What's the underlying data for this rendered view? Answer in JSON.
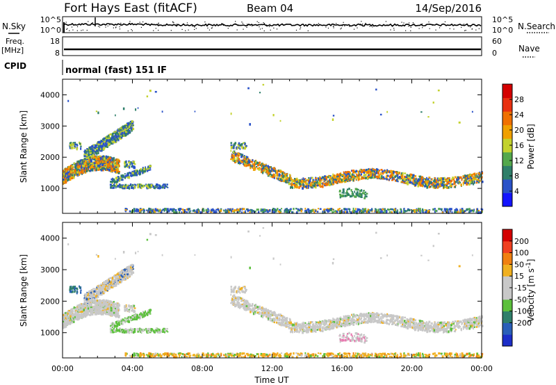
{
  "header": {
    "station": "Fort Hays East (fitACF)",
    "beam": "Beam 04",
    "date": "14/Sep/2016",
    "cpid": "CPID",
    "mode": "normal (fast) 151 IF"
  },
  "status_panels": {
    "noise": {
      "left_label": "N.Sky",
      "right_label": "N.Search",
      "left_ticks": [
        "10^5",
        "10^0"
      ],
      "right_ticks": [
        "10^5",
        "10^0"
      ]
    },
    "freq": {
      "left_label_line1": "Freq.",
      "left_label_line2": "[MHz]",
      "right_label": "Nave",
      "left_ticks": [
        "18",
        "8"
      ],
      "right_ticks": [
        "60",
        "0"
      ]
    }
  },
  "colors": {
    "power_scale": [
      "#1414ff",
      "#2a52c8",
      "#2f7f6a",
      "#54a84c",
      "#c3d22d",
      "#f0a000",
      "#f07000",
      "#e83010",
      "#d40000"
    ],
    "velocity_scale": [
      "#1c2ec8",
      "#2a5fb8",
      "#2f7f6a",
      "#5cc03c",
      "#c8c8c8",
      "#c8c8c8",
      "#f0b020",
      "#f08010",
      "#f04020",
      "#d40000"
    ]
  },
  "chart_data": [
    {
      "type": "heatmap",
      "name": "power",
      "ylabel": "Slant Range [km]",
      "yticks": [
        "1000",
        "2000",
        "3000",
        "4000"
      ],
      "ylim": [
        200,
        4500
      ],
      "xlim": [
        0,
        24
      ],
      "colorbar_label": "Power [dB]",
      "colorbar_ticks": [
        "4",
        "8",
        "12",
        "16",
        "20",
        "24",
        "28"
      ],
      "colorbar_range": [
        0,
        32
      ]
    },
    {
      "type": "heatmap",
      "name": "velocity",
      "xlabel": "Time UT",
      "ylabel": "Slant Range [km]",
      "xticks": [
        "00:00",
        "04:00",
        "08:00",
        "12:00",
        "16:00",
        "20:00",
        "00:00"
      ],
      "yticks": [
        "1000",
        "2000",
        "3000",
        "4000"
      ],
      "ylim": [
        200,
        4500
      ],
      "xlim": [
        0,
        24
      ],
      "colorbar_label": "Velocity [m s",
      "colorbar_label_sup": "-1",
      "colorbar_label_end": "]",
      "colorbar_ticks": [
        "200",
        "100",
        "50",
        "15",
        "-15",
        "-50",
        "-100",
        "-200"
      ]
    }
  ]
}
